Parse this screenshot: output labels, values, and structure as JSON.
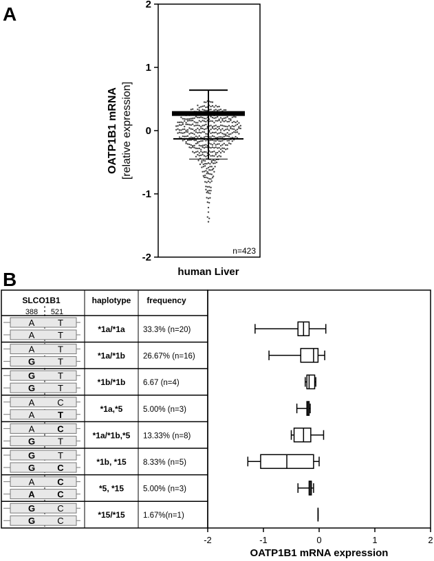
{
  "panel_a": {
    "label": "A"
  },
  "panel_b": {
    "label": "B"
  },
  "chart_data": [
    {
      "type": "scatter",
      "title": "",
      "ylabel": "OATP1B1 mRNA",
      "ylabel2": "[relative expression]",
      "xlabel": "human Liver",
      "ylim": [
        -2,
        2
      ],
      "yticks": [
        "2",
        "1",
        "0",
        "-1",
        "-2"
      ],
      "annotation": "n=423",
      "summary": {
        "mean_plus_sd": 0.64,
        "mean": 0.27,
        "median": -0.13,
        "mean_minus_sd": -0.45
      },
      "distribution_bins": [
        {
          "y": 0.45,
          "count": 6
        },
        {
          "y": 0.38,
          "count": 14
        },
        {
          "y": 0.32,
          "count": 22
        },
        {
          "y": 0.26,
          "count": 30
        },
        {
          "y": 0.2,
          "count": 34
        },
        {
          "y": 0.14,
          "count": 38
        },
        {
          "y": 0.08,
          "count": 40
        },
        {
          "y": 0.02,
          "count": 40
        },
        {
          "y": -0.04,
          "count": 38
        },
        {
          "y": -0.1,
          "count": 36
        },
        {
          "y": -0.16,
          "count": 32
        },
        {
          "y": -0.22,
          "count": 28
        },
        {
          "y": -0.28,
          "count": 24
        },
        {
          "y": -0.34,
          "count": 20
        },
        {
          "y": -0.4,
          "count": 16
        },
        {
          "y": -0.46,
          "count": 13
        },
        {
          "y": -0.52,
          "count": 11
        },
        {
          "y": -0.58,
          "count": 9
        },
        {
          "y": -0.64,
          "count": 8
        },
        {
          "y": -0.7,
          "count": 7
        },
        {
          "y": -0.76,
          "count": 6
        },
        {
          "y": -0.82,
          "count": 5
        },
        {
          "y": -0.88,
          "count": 4
        },
        {
          "y": -0.94,
          "count": 4
        },
        {
          "y": -1.0,
          "count": 3
        },
        {
          "y": -1.06,
          "count": 3
        },
        {
          "y": -1.12,
          "count": 2
        },
        {
          "y": -1.2,
          "count": 1
        },
        {
          "y": -1.3,
          "count": 1
        },
        {
          "y": -1.38,
          "count": 2
        },
        {
          "y": -1.45,
          "count": 1
        }
      ]
    },
    {
      "type": "table",
      "headers": [
        "SLCO1B1",
        "haplotype",
        "frequency"
      ],
      "positions": [
        "388",
        "521"
      ],
      "rows": [
        {
          "a1": [
            "A",
            "T"
          ],
          "a2": [
            "A",
            "T"
          ],
          "bold1": [
            false,
            false
          ],
          "bold2": [
            false,
            false
          ],
          "haplotype": "*1a/*1a",
          "frequency": "33.3% (n=20)"
        },
        {
          "a1": [
            "A",
            "T"
          ],
          "a2": [
            "G",
            "T"
          ],
          "bold1": [
            false,
            false
          ],
          "bold2": [
            true,
            false
          ],
          "haplotype": "*1a/*1b",
          "frequency": "26.67% (n=16)"
        },
        {
          "a1": [
            "G",
            "T"
          ],
          "a2": [
            "G",
            "T"
          ],
          "bold1": [
            true,
            false
          ],
          "bold2": [
            true,
            false
          ],
          "haplotype": "*1b/*1b",
          "frequency": "6.67 (n=4)"
        },
        {
          "a1": [
            "A",
            "C"
          ],
          "a2": [
            "A",
            "T"
          ],
          "bold1": [
            false,
            false
          ],
          "bold2": [
            false,
            true
          ],
          "haplotype": "*1a,*5",
          "frequency": "5.00% (n=3)"
        },
        {
          "a1": [
            "A",
            "C"
          ],
          "a2": [
            "G",
            "T"
          ],
          "bold1": [
            false,
            true
          ],
          "bold2": [
            true,
            false
          ],
          "haplotype": "*1a/*1b,*5",
          "frequency": "13.33% (n=8)"
        },
        {
          "a1": [
            "G",
            "T"
          ],
          "a2": [
            "G",
            "C"
          ],
          "bold1": [
            true,
            false
          ],
          "bold2": [
            true,
            true
          ],
          "haplotype": "*1b, *15",
          "frequency": "8.33% (n=5)"
        },
        {
          "a1": [
            "A",
            "C"
          ],
          "a2": [
            "A",
            "C"
          ],
          "bold1": [
            false,
            true
          ],
          "bold2": [
            true,
            true
          ],
          "haplotype": "*5, *15",
          "frequency": "5.00% (n=3)"
        },
        {
          "a1": [
            "G",
            "C"
          ],
          "a2": [
            "G",
            "C"
          ],
          "bold1": [
            true,
            false
          ],
          "bold2": [
            true,
            false
          ],
          "haplotype": "*15/*15",
          "frequency": "1.67%(n=1)"
        }
      ]
    },
    {
      "type": "box",
      "xlabel": "OATP1B1 mRNA expression",
      "xlim": [
        -2,
        2
      ],
      "xticks": [
        "-2",
        "-1",
        "0",
        "1",
        "2"
      ],
      "boxes": [
        {
          "min": -1.15,
          "q1": -0.38,
          "median": -0.28,
          "q3": -0.18,
          "max": 0.12
        },
        {
          "min": -0.9,
          "q1": -0.33,
          "median": -0.1,
          "q3": -0.02,
          "max": 0.1
        },
        {
          "min": -0.25,
          "q1": -0.22,
          "median": -0.18,
          "q3": -0.08,
          "max": -0.06
        },
        {
          "min": -0.4,
          "q1": -0.22,
          "median": -0.2,
          "q3": -0.18,
          "max": -0.16
        },
        {
          "min": -0.5,
          "q1": -0.45,
          "median": -0.28,
          "q3": -0.15,
          "max": 0.08
        },
        {
          "min": -1.28,
          "q1": -1.05,
          "median": -0.58,
          "q3": -0.1,
          "max": 0.0
        },
        {
          "min": -0.38,
          "q1": -0.18,
          "median": -0.16,
          "q3": -0.14,
          "max": -0.1
        },
        {
          "min": -0.02,
          "q1": -0.02,
          "median": -0.02,
          "q3": -0.02,
          "max": -0.02
        }
      ]
    }
  ]
}
